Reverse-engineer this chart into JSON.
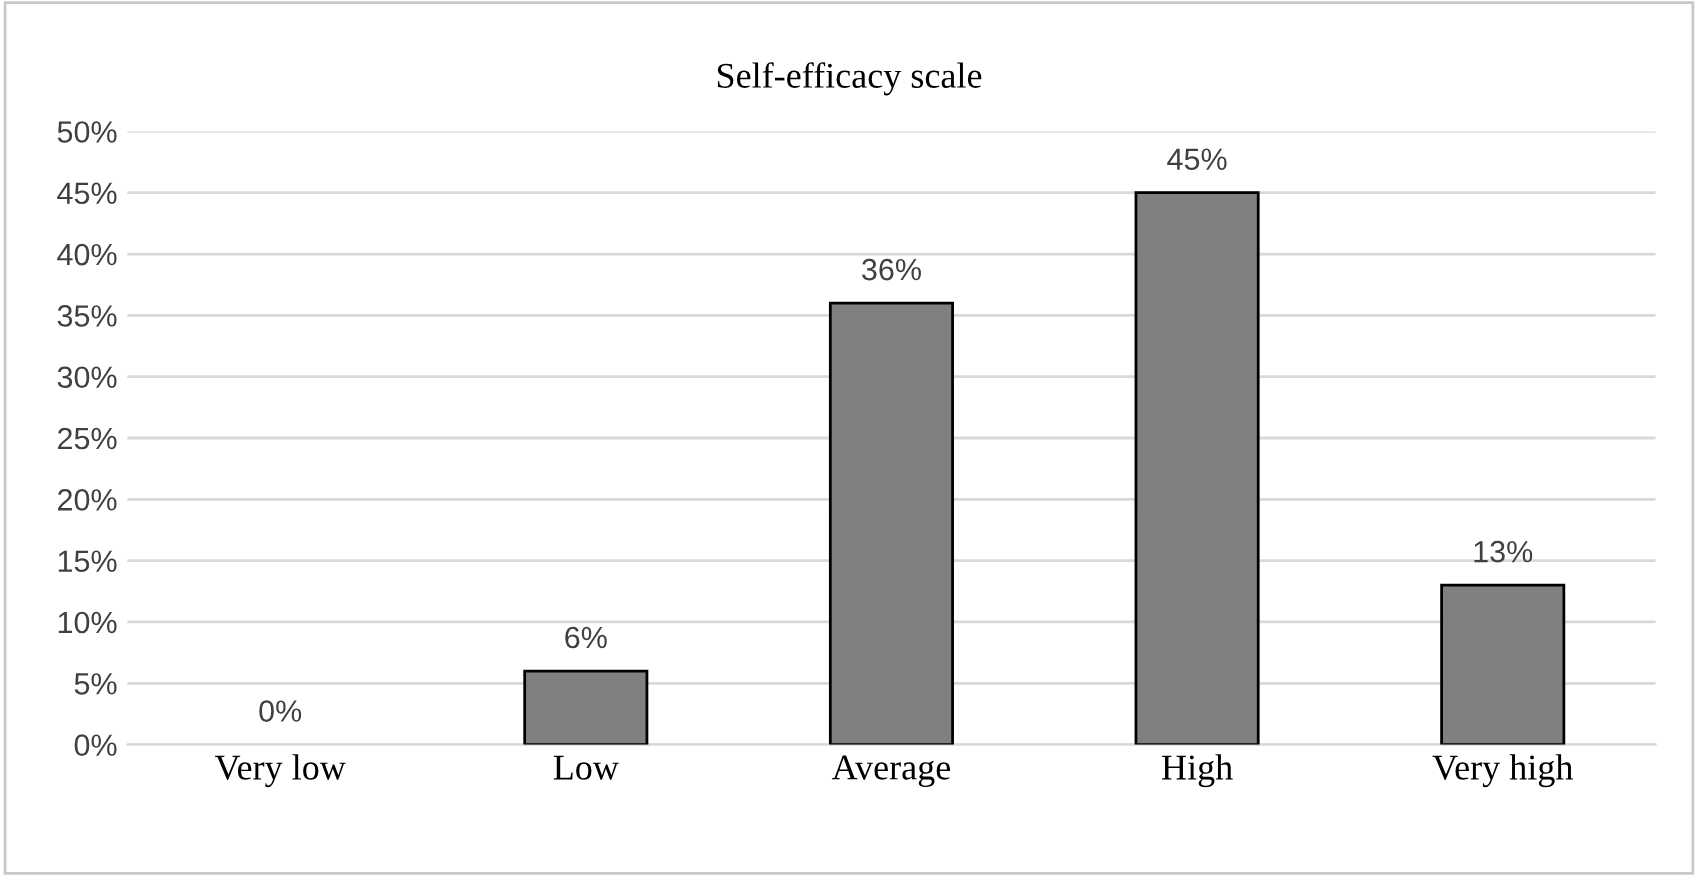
{
  "chart_data": {
    "type": "bar",
    "title": "Self-efficacy scale",
    "categories": [
      "Very low",
      "Low",
      "Average",
      "High",
      "Very high"
    ],
    "values": [
      0,
      6,
      36,
      45,
      13
    ],
    "value_labels": [
      "0%",
      "6%",
      "36%",
      "45%",
      "13%"
    ],
    "color": "#808080",
    "ylim": [
      0,
      50
    ],
    "yticks": [
      {
        "value": 0,
        "label": "0%"
      },
      {
        "value": 5,
        "label": "5%"
      },
      {
        "value": 10,
        "label": "10%"
      },
      {
        "value": 15,
        "label": "15%"
      },
      {
        "value": 20,
        "label": "20%"
      },
      {
        "value": 25,
        "label": "25%"
      },
      {
        "value": 30,
        "label": "30%"
      },
      {
        "value": 35,
        "label": "35%"
      },
      {
        "value": 40,
        "label": "40%"
      },
      {
        "value": 45,
        "label": "45%"
      },
      {
        "value": 50,
        "label": "50%"
      }
    ],
    "grid": "y",
    "legend": false
  }
}
